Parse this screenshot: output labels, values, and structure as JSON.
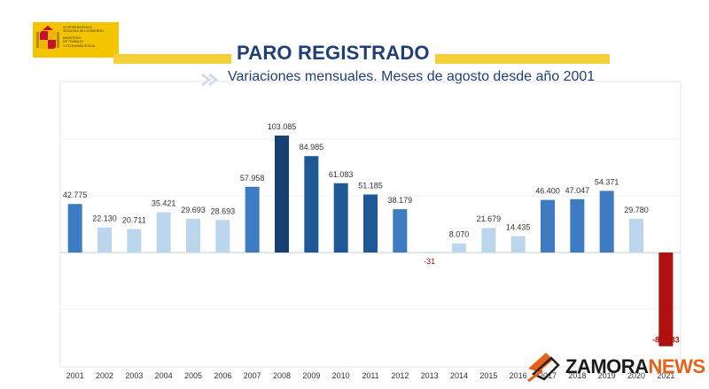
{
  "logo": {
    "lines": [
      "VICEPRESIDENCIA",
      "SEGUNDA DEL GOBIERNO",
      "MINISTERIO",
      "DE TRABAJO",
      "Y ECONOMÍA SOCIAL"
    ],
    "color": "#f5c400"
  },
  "header": {
    "title": "PARO REGISTRADO",
    "subtitle": "Variaciones mensuales. Meses de agosto desde año 2001"
  },
  "chart_data": {
    "type": "bar",
    "title": "PARO REGISTRADO",
    "subtitle": "Variaciones mensuales. Meses de agosto desde año 2001",
    "xlabel": "",
    "ylabel": "",
    "categories": [
      "2001",
      "2002",
      "2003",
      "2004",
      "2005",
      "2006",
      "2007",
      "2008",
      "2009",
      "2010",
      "2011",
      "2012",
      "2013",
      "2014",
      "2015",
      "2016",
      "2017",
      "2018",
      "2019",
      "2020",
      "2021"
    ],
    "values": [
      42775,
      22130,
      20711,
      35421,
      29693,
      28693,
      57958,
      103085,
      84985,
      61083,
      51185,
      38179,
      -31,
      8070,
      21679,
      14435,
      46400,
      47047,
      54371,
      29780,
      -82583
    ],
    "labels": [
      "42.775",
      "22.130",
      "20.711",
      "35.421",
      "29.693",
      "28.693",
      "57.958",
      "103.085",
      "84.985",
      "61.083",
      "51.185",
      "38.179",
      "-31",
      "8.070",
      "21.679",
      "14.435",
      "46.400",
      "47.047",
      "54.371",
      "29.780",
      "-82.583"
    ],
    "ylim": [
      -100000,
      150000
    ],
    "grid": true,
    "legend": "none",
    "colors": {
      "light": "#bcd6ee",
      "medium": "#3d7cc2",
      "dark": "#1f5896",
      "darkest": "#163f72",
      "negative": "#b01010"
    },
    "bar_shades": [
      "medium",
      "light",
      "light",
      "light",
      "light",
      "light",
      "medium",
      "darkest",
      "dark",
      "dark",
      "dark",
      "medium",
      "light",
      "light",
      "light",
      "light",
      "medium",
      "medium",
      "medium",
      "light",
      "negative"
    ]
  },
  "watermark": {
    "brand": "ZAMORA",
    "suffix": "NEWS",
    "accent": "#e8611a"
  }
}
